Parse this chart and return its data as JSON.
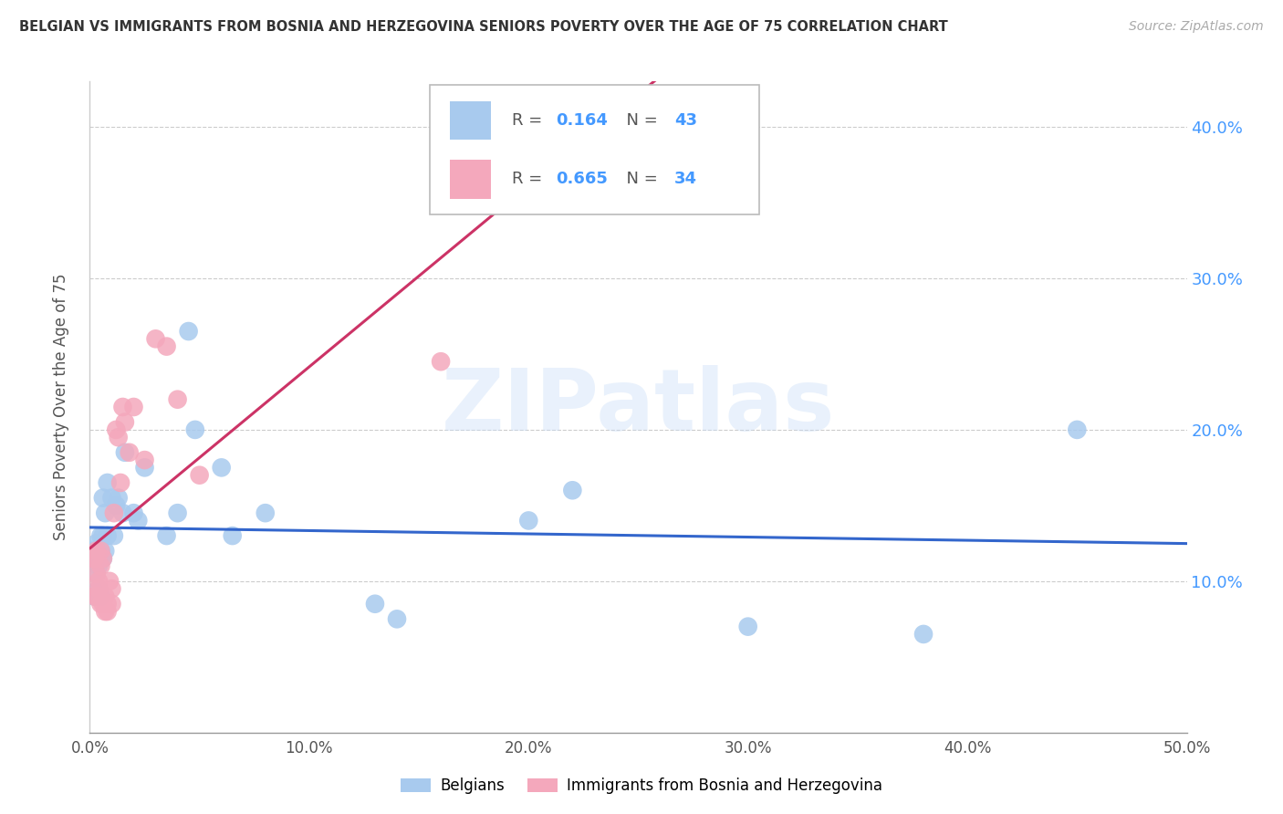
{
  "title": "BELGIAN VS IMMIGRANTS FROM BOSNIA AND HERZEGOVINA SENIORS POVERTY OVER THE AGE OF 75 CORRELATION CHART",
  "source": "Source: ZipAtlas.com",
  "ylabel": "Seniors Poverty Over the Age of 75",
  "xlim": [
    0.0,
    0.5
  ],
  "ylim": [
    0.0,
    0.43
  ],
  "xticks": [
    0.0,
    0.1,
    0.2,
    0.3,
    0.4,
    0.5
  ],
  "yticks": [
    0.1,
    0.2,
    0.3,
    0.4
  ],
  "belgian_R": "0.164",
  "belgian_N": "43",
  "immigrant_R": "0.665",
  "immigrant_N": "34",
  "belgian_color": "#a8caee",
  "immigrant_color": "#f4a8bc",
  "belgian_line_color": "#3366cc",
  "immigrant_line_color": "#cc3366",
  "watermark": "ZIPatlas",
  "background_color": "#ffffff",
  "grid_color": "#cccccc",
  "right_tick_color": "#4499ff",
  "label_color": "#333333",
  "source_color": "#aaaaaa",
  "belgian_x": [
    0.001,
    0.002,
    0.002,
    0.003,
    0.003,
    0.003,
    0.004,
    0.004,
    0.004,
    0.005,
    0.005,
    0.005,
    0.005,
    0.006,
    0.006,
    0.006,
    0.007,
    0.007,
    0.008,
    0.008,
    0.01,
    0.011,
    0.012,
    0.013,
    0.015,
    0.016,
    0.02,
    0.022,
    0.025,
    0.035,
    0.04,
    0.045,
    0.048,
    0.06,
    0.065,
    0.08,
    0.13,
    0.14,
    0.2,
    0.22,
    0.3,
    0.38,
    0.45
  ],
  "belgian_y": [
    0.12,
    0.115,
    0.09,
    0.125,
    0.115,
    0.105,
    0.11,
    0.12,
    0.095,
    0.13,
    0.12,
    0.115,
    0.09,
    0.155,
    0.13,
    0.115,
    0.145,
    0.12,
    0.165,
    0.13,
    0.155,
    0.13,
    0.15,
    0.155,
    0.145,
    0.185,
    0.145,
    0.14,
    0.175,
    0.13,
    0.145,
    0.265,
    0.2,
    0.175,
    0.13,
    0.145,
    0.085,
    0.075,
    0.14,
    0.16,
    0.07,
    0.065,
    0.2
  ],
  "immigrant_x": [
    0.001,
    0.002,
    0.002,
    0.003,
    0.003,
    0.003,
    0.004,
    0.004,
    0.005,
    0.005,
    0.005,
    0.006,
    0.006,
    0.007,
    0.007,
    0.008,
    0.008,
    0.009,
    0.01,
    0.01,
    0.011,
    0.012,
    0.013,
    0.014,
    0.015,
    0.016,
    0.018,
    0.02,
    0.025,
    0.03,
    0.035,
    0.04,
    0.05,
    0.16
  ],
  "immigrant_y": [
    0.115,
    0.09,
    0.115,
    0.12,
    0.105,
    0.09,
    0.1,
    0.095,
    0.12,
    0.11,
    0.085,
    0.115,
    0.085,
    0.09,
    0.08,
    0.085,
    0.08,
    0.1,
    0.095,
    0.085,
    0.145,
    0.2,
    0.195,
    0.165,
    0.215,
    0.205,
    0.185,
    0.215,
    0.18,
    0.26,
    0.255,
    0.22,
    0.17,
    0.245
  ]
}
